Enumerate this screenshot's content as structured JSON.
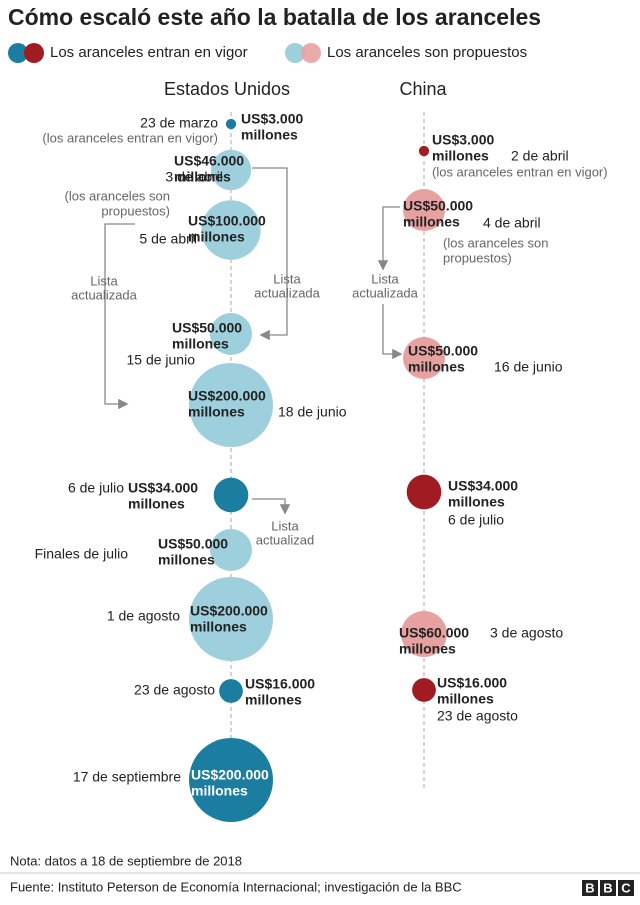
{
  "title": "Cómo escaló este año la batalla de los aranceles",
  "legend": {
    "enacted": "Los aranceles entran en vigor",
    "proposed": "Los aranceles son propuestos"
  },
  "colors": {
    "us_enacted": "#1b7ea1",
    "us_proposed": "#9ecfdc",
    "cn_enacted": "#a01c22",
    "cn_proposed": "#e7a1a1"
  },
  "columns": [
    {
      "name": "Estados Unidos",
      "events": [
        {
          "date": "23 de marzo",
          "note": [
            "(los aranceles entran en vigor)"
          ],
          "amount": 3000,
          "label": [
            "US$3.000",
            "millones"
          ],
          "status": "enacted"
        },
        {
          "date": "3 de abril",
          "note": [
            "(los aranceles son",
            "propuestos)"
          ],
          "amount": 46000,
          "label": [
            "US$46.000",
            "millones"
          ],
          "status": "proposed"
        },
        {
          "date": "5 de abril",
          "amount": 100000,
          "label": [
            "US$100.000",
            "millones"
          ],
          "status": "proposed"
        },
        {
          "date": "15 de junio",
          "amount": 50000,
          "label": [
            "US$50.000",
            "millones"
          ],
          "status": "proposed"
        },
        {
          "date": "18 de junio",
          "amount": 200000,
          "label": [
            "US$200.000",
            "millones"
          ],
          "status": "proposed"
        },
        {
          "date": "6 de julio",
          "amount": 34000,
          "label": [
            "US$34.000",
            "millones"
          ],
          "status": "enacted"
        },
        {
          "date": "Finales de julio",
          "amount": 50000,
          "label": [
            "US$50.000",
            "millones"
          ],
          "status": "proposed"
        },
        {
          "date": "1 de agosto",
          "amount": 200000,
          "label": [
            "US$200.000",
            "millones"
          ],
          "status": "proposed"
        },
        {
          "date": "23 de agosto",
          "amount": 16000,
          "label": [
            "US$16.000",
            "millones"
          ],
          "status": "enacted"
        },
        {
          "date": "17 de septiembre",
          "amount": 200000,
          "label": [
            "US$200.000",
            "millones"
          ],
          "status": "enacted"
        }
      ]
    },
    {
      "name": "China",
      "events": [
        {
          "date": "2 de abril",
          "note": [
            "(los aranceles entran en vigor)"
          ],
          "amount": 3000,
          "label": [
            "US$3.000",
            "millones"
          ],
          "status": "enacted"
        },
        {
          "date": "4 de abril",
          "note": [
            "(los aranceles son",
            "propuestos)"
          ],
          "amount": 50000,
          "label": [
            "US$50.000",
            "millones"
          ],
          "status": "proposed"
        },
        {
          "date": "16 de junio",
          "amount": 50000,
          "label": [
            "US$50.000",
            "millones"
          ],
          "status": "proposed"
        },
        {
          "date": "6 de julio",
          "amount": 34000,
          "label": [
            "US$34.000",
            "millones"
          ],
          "status": "enacted"
        },
        {
          "date": "3 de agosto",
          "amount": 60000,
          "label": [
            "US$60.000",
            "millones"
          ],
          "status": "proposed"
        },
        {
          "date": "23 de agosto",
          "amount": 16000,
          "label": [
            "US$16.000",
            "millones"
          ],
          "status": "enacted"
        }
      ]
    }
  ],
  "annotations": [
    [
      "Lista",
      "actualizada"
    ],
    [
      "Lista",
      "actualizada"
    ],
    [
      "Lista",
      "actualizad"
    ],
    [
      "Lista",
      "actualizada"
    ]
  ],
  "note": "Nota: datos a 18 de septiembre de 2018",
  "source": "Fuente: Instituto Peterson de Economía Internacional; investigación de la BBC",
  "logo": [
    "B",
    "B",
    "C"
  ]
}
